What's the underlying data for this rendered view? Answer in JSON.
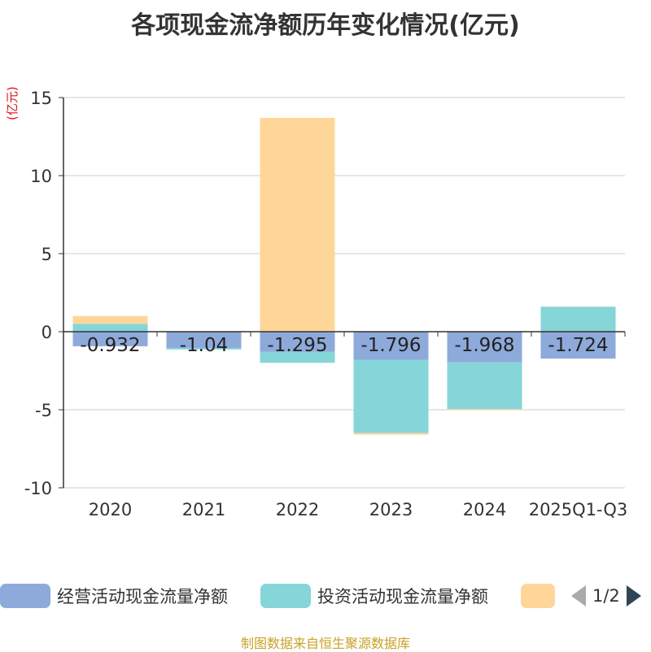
{
  "chart_data": {
    "type": "bar",
    "stacked": true,
    "title": "各项现金流净额历年变化情况(亿元)",
    "ylabel": "(亿元)",
    "ylim": [
      -10,
      15
    ],
    "yticks": [
      15,
      10,
      5,
      0,
      -5,
      -10
    ],
    "categories": [
      "2020",
      "2021",
      "2022",
      "2023",
      "2024",
      "2025Q1-Q3"
    ],
    "series": [
      {
        "name": "经营活动现金流量净额",
        "color": "#8eaadb",
        "values": [
          -0.932,
          -1.04,
          -1.295,
          -1.796,
          -1.968,
          -1.724
        ],
        "labels": [
          "-0.932",
          "-1.04",
          "-1.295",
          "-1.796",
          "-1.968",
          "-1.724"
        ]
      },
      {
        "name": "投资活动现金流量净额",
        "color": "#86d5d8",
        "values": [
          0.5,
          -0.1,
          -0.7,
          -4.7,
          -3.0,
          1.6
        ]
      },
      {
        "name": "",
        "color": "#ffd699",
        "values": [
          0.5,
          0.0,
          13.7,
          -0.1,
          -0.05,
          0.0
        ]
      }
    ]
  },
  "legend": {
    "items": [
      {
        "label": "经营活动现金流量净额",
        "color": "#8eaadb"
      },
      {
        "label": "投资活动现金流量净额",
        "color": "#86d5d8"
      },
      {
        "label": "",
        "color": "#ffd699"
      }
    ],
    "page": "1/2"
  },
  "source": "制图数据来自恒生聚源数据库"
}
